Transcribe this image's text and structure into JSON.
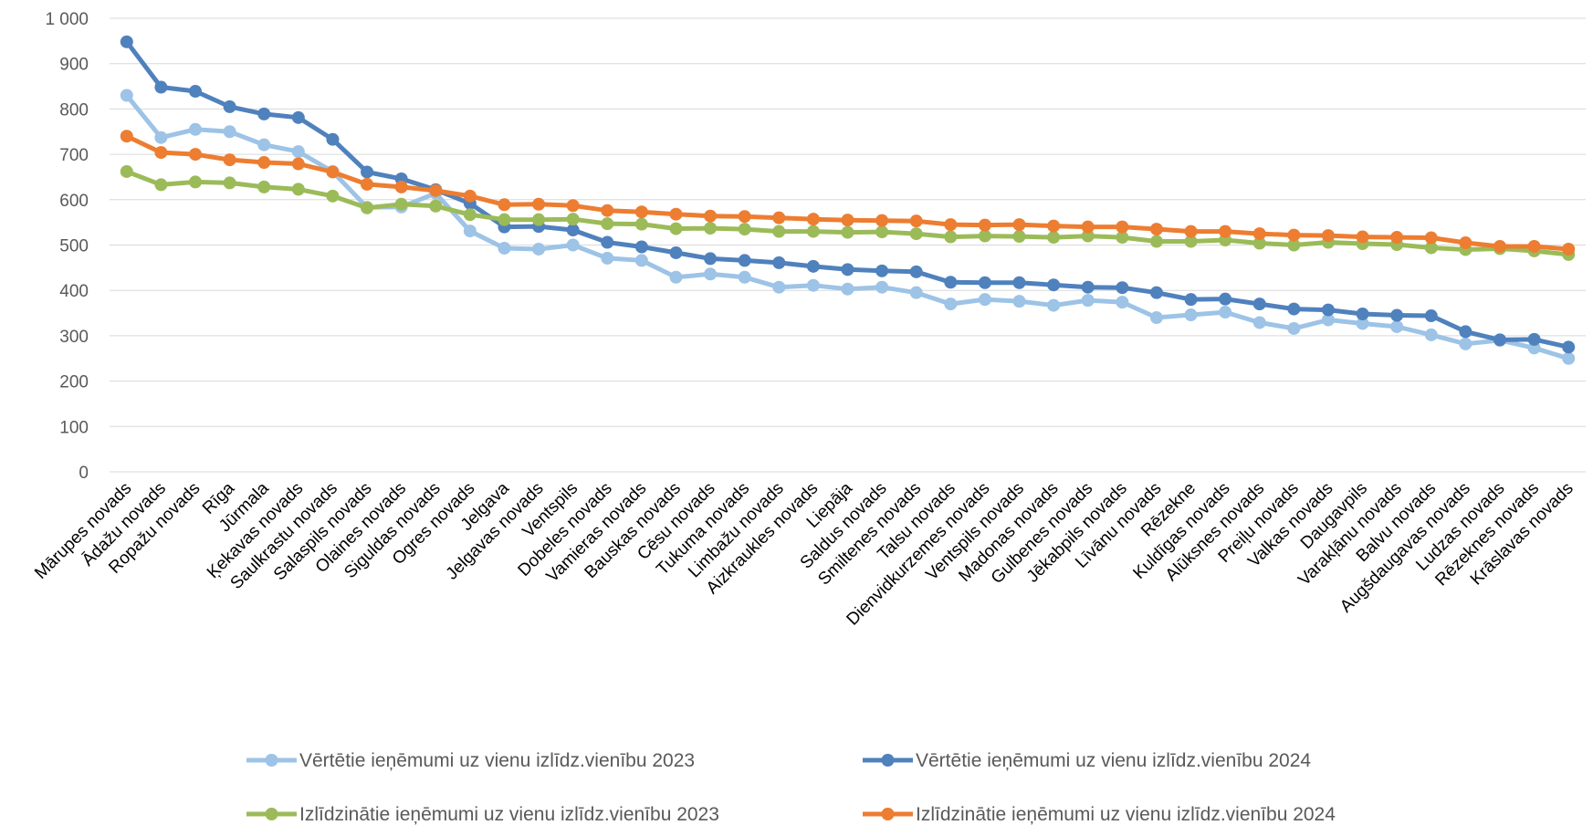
{
  "chart_data": {
    "type": "line",
    "title": "",
    "xlabel": "",
    "ylabel": "",
    "ylim": [
      0,
      1000
    ],
    "y_ticks": [
      0,
      100,
      200,
      300,
      400,
      500,
      600,
      700,
      800,
      900,
      1000
    ],
    "y_tick_labels": [
      "0",
      "100",
      "200",
      "300",
      "400",
      "500",
      "600",
      "700",
      "800",
      "900",
      "1 000"
    ],
    "grid": "horizontal",
    "legend_position": "bottom",
    "categories": [
      "Mārupes novads",
      "Ādažu novads",
      "Ropažu novads",
      "Rīga",
      "Jūrmala",
      "Ķekavas novads",
      "Saulkrastu novads",
      "Salaspils novads",
      "Olaines novads",
      "Siguldas novads",
      "Ogres novads",
      "Jelgava",
      "Jelgavas novads",
      "Ventspils",
      "Dobeles novads",
      "Vamieras novads",
      "Bauskas novads",
      "Cēsu novads",
      "Tukuma novads",
      "Limbažu novads",
      "Aizkraukles novads",
      "Liepāja",
      "Saldus novads",
      "Smiltenes novads",
      "Talsu novads",
      "Dienvidkurzemes novads",
      "Ventspils novads",
      "Madonas novads",
      "Gulbenes novads",
      "Jēkabpils novads",
      "Līvānu novads",
      "Rēzekne",
      "Kuldīgas novads",
      "Alūksnes novads",
      "Preiļu novads",
      "Valkas novads",
      "Daugavpils",
      "Varakļānu novads",
      "Balvu novads",
      "Augšdaugavas novads",
      "Ludzas novads",
      "Rēzeknes novads",
      "Krāslavas novads"
    ],
    "series": [
      {
        "name": "Vērtētie ieņēmumi uz vienu izlīdz.vienību 2023",
        "color": "#9dc3e6",
        "values": [
          830,
          737,
          755,
          750,
          721,
          706,
          662,
          583,
          584,
          614,
          531,
          493,
          491,
          500,
          471,
          466,
          429,
          436,
          429,
          407,
          411,
          403,
          407,
          395,
          370,
          380,
          376,
          367,
          378,
          374,
          340,
          346,
          352,
          329,
          316,
          335,
          327,
          320,
          302,
          282,
          290,
          273,
          250
        ]
      },
      {
        "name": "Vērtētie ieņēmumi uz vienu izlīdz.vienību 2024",
        "color": "#4f81bd",
        "values": [
          948,
          848,
          839,
          805,
          789,
          781,
          733,
          661,
          646,
          622,
          592,
          540,
          541,
          533,
          506,
          496,
          483,
          470,
          466,
          461,
          453,
          446,
          443,
          441,
          418,
          417,
          417,
          412,
          407,
          406,
          395,
          380,
          381,
          370,
          359,
          357,
          348,
          345,
          344,
          309,
          291,
          292,
          275
        ]
      },
      {
        "name": "Izlīdzinātie ieņēmumi uz vienu izlīdz.vienību 2023",
        "color": "#9bbb59",
        "values": [
          662,
          633,
          639,
          637,
          628,
          623,
          608,
          582,
          590,
          586,
          567,
          556,
          556,
          557,
          547,
          546,
          536,
          537,
          535,
          530,
          530,
          528,
          529,
          525,
          518,
          520,
          519,
          517,
          520,
          517,
          508,
          508,
          511,
          504,
          500,
          506,
          503,
          501,
          494,
          490,
          492,
          487,
          479
        ]
      },
      {
        "name": "Izlīdzinātie ieņēmumi uz vienu izlīdz.vienību 2024",
        "color": "#ed7d31",
        "values": [
          740,
          704,
          700,
          688,
          682,
          679,
          661,
          634,
          628,
          620,
          608,
          589,
          590,
          587,
          576,
          573,
          568,
          564,
          563,
          560,
          557,
          555,
          554,
          553,
          545,
          544,
          545,
          542,
          540,
          540,
          535,
          530,
          530,
          525,
          522,
          521,
          518,
          517,
          516,
          505,
          497,
          497,
          491
        ]
      }
    ]
  }
}
